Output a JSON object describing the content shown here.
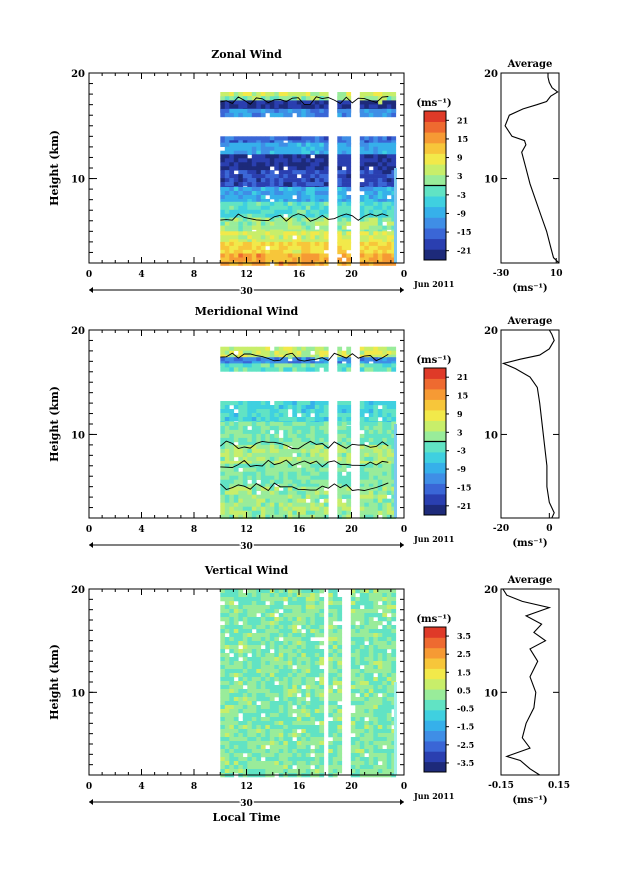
{
  "colors": {
    "jet": [
      "#1d2a7a",
      "#2a3fb0",
      "#3a66d6",
      "#3f8ee6",
      "#36b0ea",
      "#3fd0e0",
      "#61e3c4",
      "#99ec9a",
      "#c8ee6a",
      "#f2e94a",
      "#f7c63a",
      "#f69a34",
      "#ee6a30",
      "#df3a28"
    ],
    "contour": "#000000",
    "profile_line": "#000000"
  },
  "chart_data": [
    {
      "type": "heatmap",
      "title": "Zonal Wind",
      "xlabel": "",
      "ylabel": "Height (km)",
      "x_ticks": [
        "0",
        "4",
        "8",
        "12",
        "16",
        "20",
        "0"
      ],
      "y_ticks": [
        "20",
        "10"
      ],
      "xlim": [
        0,
        24
      ],
      "ylim": [
        2,
        20
      ],
      "date_axis": {
        "center_label": "30",
        "month_label": "Jun 2011"
      },
      "data_time_range": [
        10,
        24
      ],
      "data_gaps": [
        [
          18.0,
          18.6
        ],
        [
          19.8,
          20.3
        ]
      ],
      "colorbar": {
        "unit": "(ms⁻¹)",
        "tick_labels": [
          "21",
          "15",
          "9",
          "3",
          "-3",
          "-9",
          "-15",
          "-21"
        ],
        "range": [
          -24,
          24
        ],
        "zero_line": true
      },
      "layers": [
        {
          "h": [
            18.2,
            20
          ],
          "v": null
        },
        {
          "h": [
            17.8,
            18.2
          ],
          "v": 6
        },
        {
          "h": [
            17.4,
            17.8
          ],
          "v": 2
        },
        {
          "h": [
            16.6,
            17.4
          ],
          "v": -21
        },
        {
          "h": [
            16.2,
            16.6
          ],
          "v": -12
        },
        {
          "h": [
            14.0,
            16.2
          ],
          "v": null
        },
        {
          "h": [
            13.4,
            14.0
          ],
          "v": -15
        },
        {
          "h": [
            12.3,
            13.4
          ],
          "v": -9
        },
        {
          "h": [
            10.8,
            12.3
          ],
          "v": -21
        },
        {
          "h": [
            9.2,
            10.8
          ],
          "v": -18
        },
        {
          "h": [
            7.8,
            9.2
          ],
          "v": -9
        },
        {
          "h": [
            6.3,
            7.8
          ],
          "v": -3
        },
        {
          "h": [
            5.0,
            6.3
          ],
          "v": 2
        },
        {
          "h": [
            4.0,
            5.0
          ],
          "v": 6
        },
        {
          "h": [
            2.9,
            4.0
          ],
          "v": 10
        },
        {
          "h": [
            2.0,
            2.9
          ],
          "v": 14
        }
      ],
      "average_profile": {
        "title": "Average",
        "xlabel": "(ms⁻¹)",
        "x_ticks": [
          "-30",
          "10"
        ],
        "xlim": [
          -30,
          12
        ],
        "y_ticks": [
          "20",
          "10"
        ],
        "points": [
          [
            12,
            2.0
          ],
          [
            8,
            2.5
          ],
          [
            6,
            3.5
          ],
          [
            3,
            5.0
          ],
          [
            -1,
            6.5
          ],
          [
            -5,
            8.0
          ],
          [
            -9,
            9.5
          ],
          [
            -12,
            11.0
          ],
          [
            -15,
            12.5
          ],
          [
            -12,
            13.2
          ],
          [
            -13,
            13.6
          ],
          [
            -22,
            14.0
          ],
          [
            -27,
            15.0
          ],
          [
            -24,
            16.0
          ],
          [
            -14,
            16.6
          ],
          [
            -4,
            17.0
          ],
          [
            3,
            17.3
          ],
          [
            6,
            17.8
          ],
          [
            11,
            18.2
          ],
          [
            7,
            18.6
          ],
          [
            5,
            19.1
          ],
          [
            4,
            19.6
          ],
          [
            4,
            20.0
          ]
        ]
      }
    },
    {
      "type": "heatmap",
      "title": "Meridional Wind",
      "xlabel": "",
      "ylabel": "Height (km)",
      "x_ticks": [
        "0",
        "4",
        "8",
        "12",
        "16",
        "20",
        "0"
      ],
      "y_ticks": [
        "20",
        "10"
      ],
      "xlim": [
        0,
        24
      ],
      "ylim": [
        2,
        20
      ],
      "date_axis": {
        "center_label": "30",
        "month_label": "Jun 2011"
      },
      "data_time_range": [
        10,
        24
      ],
      "data_gaps": [
        [
          18.0,
          18.6
        ],
        [
          19.8,
          20.3
        ]
      ],
      "colorbar": {
        "unit": "(ms⁻¹)",
        "tick_labels": [
          "21",
          "15",
          "9",
          "3",
          "-3",
          "-9",
          "-15",
          "-21"
        ],
        "range": [
          -24,
          24
        ],
        "zero_line": true
      },
      "layers": [
        {
          "h": [
            18.4,
            20
          ],
          "v": null
        },
        {
          "h": [
            17.4,
            18.4
          ],
          "v": 5
        },
        {
          "h": [
            16.8,
            17.4
          ],
          "v": -12
        },
        {
          "h": [
            16.4,
            16.8
          ],
          "v": -2
        },
        {
          "h": [
            13.2,
            16.4
          ],
          "v": null
        },
        {
          "h": [
            11.2,
            13.2
          ],
          "v": -4
        },
        {
          "h": [
            9.0,
            11.2
          ],
          "v": 0
        },
        {
          "h": [
            7.2,
            9.0
          ],
          "v": 3
        },
        {
          "h": [
            5.0,
            7.2
          ],
          "v": 0
        },
        {
          "h": [
            2.0,
            5.0
          ],
          "v": 2
        }
      ],
      "average_profile": {
        "title": "Average",
        "xlabel": "(ms⁻¹)",
        "x_ticks": [
          "-20",
          "0"
        ],
        "xlim": [
          -20,
          4
        ],
        "y_ticks": [
          "20",
          "10"
        ],
        "points": [
          [
            1,
            2.0
          ],
          [
            2,
            2.5
          ],
          [
            0,
            3.5
          ],
          [
            -1,
            5.0
          ],
          [
            -1,
            7.0
          ],
          [
            -2,
            9.0
          ],
          [
            -3,
            11.0
          ],
          [
            -4,
            13.0
          ],
          [
            -5,
            14.5
          ],
          [
            -8,
            15.5
          ],
          [
            -14,
            16.3
          ],
          [
            -19,
            16.8
          ],
          [
            -12,
            17.2
          ],
          [
            -4,
            17.6
          ],
          [
            0,
            18.2
          ],
          [
            2,
            19.0
          ],
          [
            1,
            19.6
          ],
          [
            0,
            20.0
          ]
        ]
      }
    },
    {
      "type": "heatmap",
      "title": "Vertical Wind",
      "xlabel": "Local Time",
      "ylabel": "Height (km)",
      "x_ticks": [
        "0",
        "4",
        "8",
        "12",
        "16",
        "20",
        "0"
      ],
      "y_ticks": [
        "20",
        "10"
      ],
      "xlim": [
        0,
        24
      ],
      "ylim": [
        2,
        20
      ],
      "date_axis": {
        "center_label": "30",
        "month_label": "Jun 2011"
      },
      "data_time_range": [
        10,
        24
      ],
      "data_gaps": [
        [
          17.6,
          18.0
        ],
        [
          19.2,
          19.6
        ]
      ],
      "colorbar": {
        "unit": "(ms⁻¹)",
        "tick_labels": [
          "3.5",
          "2.5",
          "1.5",
          "0.5",
          "-0.5",
          "-1.5",
          "-2.5",
          "-3.5"
        ],
        "range": [
          -4,
          4
        ],
        "zero_line": false
      },
      "layers": [
        {
          "h": [
            2.0,
            20.0
          ],
          "v": 0.1
        }
      ],
      "average_profile": {
        "title": "Average",
        "xlabel": "(ms⁻¹)",
        "x_ticks": [
          "-0.15",
          "0.15"
        ],
        "xlim": [
          -0.15,
          0.15
        ],
        "y_ticks": [
          "20",
          "10"
        ],
        "points": [
          [
            0.05,
            2.0
          ],
          [
            0.0,
            2.6
          ],
          [
            -0.05,
            3.4
          ],
          [
            -0.12,
            3.8
          ],
          [
            0.0,
            4.6
          ],
          [
            -0.04,
            5.6
          ],
          [
            -0.02,
            7.0
          ],
          [
            0.02,
            8.5
          ],
          [
            0.03,
            10.0
          ],
          [
            0.0,
            11.5
          ],
          [
            0.04,
            13.0
          ],
          [
            0.0,
            14.2
          ],
          [
            0.08,
            15.0
          ],
          [
            0.02,
            15.8
          ],
          [
            0.06,
            16.6
          ],
          [
            -0.02,
            17.4
          ],
          [
            0.1,
            18.2
          ],
          [
            -0.04,
            18.8
          ],
          [
            -0.12,
            19.4
          ],
          [
            -0.14,
            20.0
          ]
        ]
      }
    }
  ]
}
